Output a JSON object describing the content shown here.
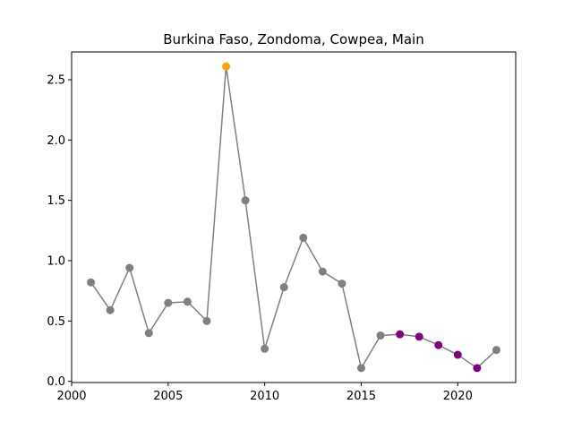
{
  "chart_data": {
    "type": "line",
    "title": "Burkina Faso, Zondoma, Cowpea, Main",
    "xlabel": "",
    "ylabel": "",
    "xlim": [
      2000,
      2023
    ],
    "ylim": [
      -0.01,
      2.73
    ],
    "xticks": [
      2000,
      2005,
      2010,
      2015,
      2020
    ],
    "yticks": [
      0.0,
      0.5,
      1.0,
      1.5,
      2.0,
      2.5
    ],
    "grid": false,
    "line_color": "#808080",
    "series": [
      {
        "x": [
          2001,
          2002,
          2003,
          2004,
          2005,
          2006,
          2007,
          2008,
          2009,
          2010,
          2011,
          2012,
          2013,
          2014,
          2015,
          2016,
          2017,
          2018,
          2019,
          2020,
          2021,
          2022
        ],
        "values": [
          0.82,
          0.59,
          0.94,
          0.4,
          0.65,
          0.66,
          0.5,
          2.61,
          1.5,
          0.27,
          0.78,
          1.19,
          0.91,
          0.81,
          0.11,
          0.38,
          0.39,
          0.37,
          0.3,
          0.22,
          0.11,
          0.26
        ],
        "point_colors": [
          "#808080",
          "#808080",
          "#808080",
          "#808080",
          "#808080",
          "#808080",
          "#808080",
          "#ffa500",
          "#808080",
          "#808080",
          "#808080",
          "#808080",
          "#808080",
          "#808080",
          "#808080",
          "#808080",
          "#800080",
          "#800080",
          "#800080",
          "#800080",
          "#800080",
          "#808080"
        ]
      }
    ]
  }
}
